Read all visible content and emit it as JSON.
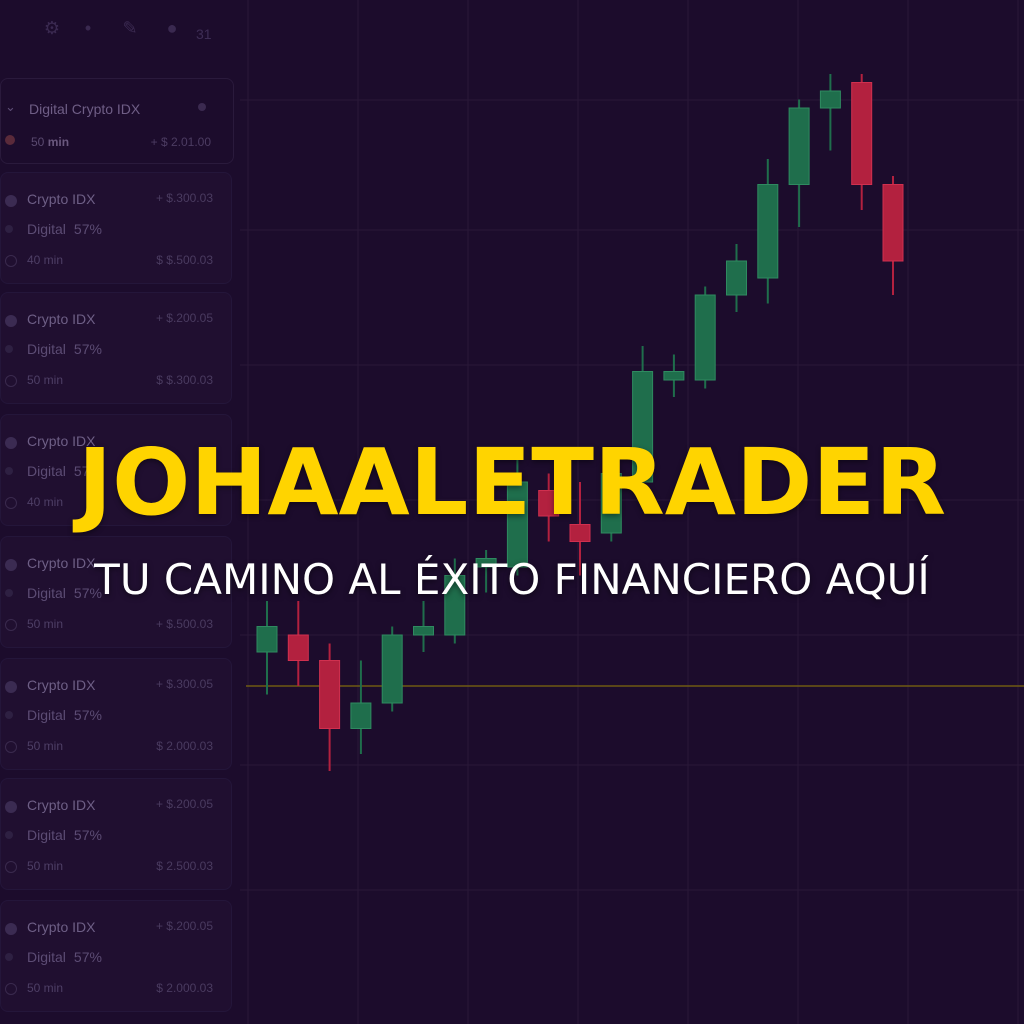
{
  "topbar": {
    "icons": [
      "gear-icon",
      "dot-icon",
      "pencil-icon",
      "drop-icon"
    ],
    "count": "31"
  },
  "filter": {
    "title": "Digital  Crypto IDX",
    "duration_num": "50",
    "duration_unit": "min",
    "price": "+ $ 2.01.00"
  },
  "assets": [
    {
      "name": "Crypto IDX",
      "price_top": "+ $.300.03",
      "kind": "Digital",
      "percent": "57%",
      "duration": "40 min",
      "price_bottom": "$ $.500.03"
    },
    {
      "name": "Crypto IDX",
      "price_top": "+ $.200.05",
      "kind": "Digital",
      "percent": "57%",
      "duration": "50 min",
      "price_bottom": "$ $.300.03"
    },
    {
      "name": "Crypto IDX",
      "price_top": "",
      "kind": "Digital",
      "percent": "57%",
      "duration": "40 min",
      "price_bottom": ""
    },
    {
      "name": "Crypto IDX",
      "price_top": "",
      "kind": "Digital",
      "percent": "57%",
      "duration": "50 min",
      "price_bottom": "+ $.500.03"
    },
    {
      "name": "Crypto IDX",
      "price_top": "+ $.300.05",
      "kind": "Digital",
      "percent": "57%",
      "duration": "50 min",
      "price_bottom": "$ 2.000.03"
    },
    {
      "name": "Crypto IDX",
      "price_top": "+ $.200.05",
      "kind": "Digital",
      "percent": "57%",
      "duration": "50 min",
      "price_bottom": "$ 2.500.03"
    },
    {
      "name": "Crypto IDX",
      "price_top": "+ $.200.05",
      "kind": "Digital",
      "percent": "57%",
      "duration": "50 min",
      "price_bottom": "$ 2.000.03"
    }
  ],
  "headline": {
    "brand": "JOHAALETRADER",
    "tagline": "TU CAMINO AL ÉXITO FINANCIERO AQUÍ"
  },
  "colors": {
    "background": "#1c0c2c",
    "bull": "#1f6e4c",
    "bear": "#b3213f",
    "brand": "#ffd400",
    "tagline": "#ffffff",
    "reference_line": "#6e5a12"
  },
  "chart_data": {
    "type": "candlestick",
    "title": "",
    "xlabel": "",
    "ylabel": "",
    "grid": true,
    "ylim": [
      0,
      100
    ],
    "reference_level": 24,
    "candles": [
      {
        "open": 28,
        "high": 34,
        "low": 23,
        "close": 31
      },
      {
        "open": 30,
        "high": 34,
        "low": 24,
        "close": 27
      },
      {
        "open": 27,
        "high": 29,
        "low": 14,
        "close": 19
      },
      {
        "open": 19,
        "high": 27,
        "low": 16,
        "close": 22
      },
      {
        "open": 22,
        "high": 31,
        "low": 21,
        "close": 30
      },
      {
        "open": 30,
        "high": 34,
        "low": 28,
        "close": 31
      },
      {
        "open": 30,
        "high": 39,
        "low": 29,
        "close": 37
      },
      {
        "open": 38,
        "high": 40,
        "low": 35,
        "close": 39
      },
      {
        "open": 38,
        "high": 51,
        "low": 37,
        "close": 48
      },
      {
        "open": 47,
        "high": 49,
        "low": 41,
        "close": 44
      },
      {
        "open": 43,
        "high": 48,
        "low": 37,
        "close": 41
      },
      {
        "open": 42,
        "high": 51,
        "low": 41,
        "close": 49
      },
      {
        "open": 48,
        "high": 64,
        "low": 47,
        "close": 61
      },
      {
        "open": 60,
        "high": 63,
        "low": 58,
        "close": 61
      },
      {
        "open": 60,
        "high": 71,
        "low": 59,
        "close": 70
      },
      {
        "open": 70,
        "high": 76,
        "low": 68,
        "close": 74
      },
      {
        "open": 72,
        "high": 86,
        "low": 69,
        "close": 83
      },
      {
        "open": 83,
        "high": 93,
        "low": 78,
        "close": 92
      },
      {
        "open": 92,
        "high": 96,
        "low": 87,
        "close": 94
      },
      {
        "open": 95,
        "high": 96,
        "low": 80,
        "close": 83
      },
      {
        "open": 83,
        "high": 84,
        "low": 70,
        "close": 74
      }
    ]
  }
}
